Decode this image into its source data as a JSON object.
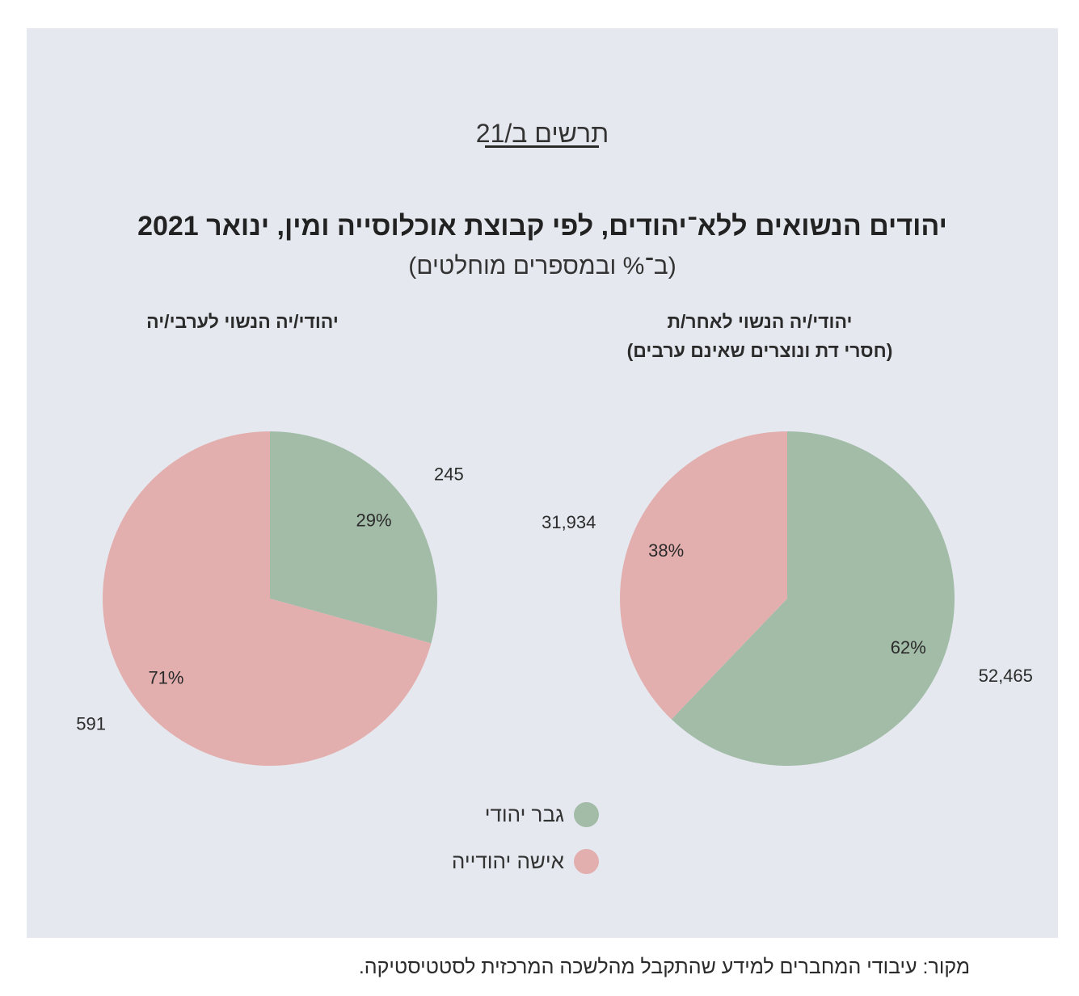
{
  "figure_label": "תרשים ב/21",
  "title": "יהודים הנשואים ללא־יהודים, לפי קבוצת אוכלוסייה ומין, ינואר 2021",
  "subtitle": "(ב־% ובמספרים מוחלטים)",
  "source": "מקור: עיבודי המחברים למידע שהתקבל מהלשכה המרכזית לסטטיסטיקה.",
  "colors": {
    "male": "#a3bca8",
    "female": "#e3afae",
    "panel": "#e5e9ef"
  },
  "legend": [
    {
      "label": "גבר יהודי",
      "color": "#a3bca8"
    },
    {
      "label": "אישה יהודייה",
      "color": "#e3afae"
    }
  ],
  "chart_data": [
    {
      "type": "pie",
      "title_lines": [
        "יהודי/יה הנשוי לערבי/יה"
      ],
      "slices": [
        {
          "name": "גבר יהודי",
          "value": 245,
          "percent": "29%"
        },
        {
          "name": "אישה יהודייה",
          "value": 591,
          "percent": "71%"
        }
      ],
      "value_labels": [
        "245",
        "591"
      ]
    },
    {
      "type": "pie",
      "title_lines": [
        "יהודי/יה הנשוי לאחר/ת",
        "(חסרי דת ונוצרים שאינם ערבים)"
      ],
      "slices": [
        {
          "name": "גבר יהודי",
          "value": 52465,
          "percent": "62%"
        },
        {
          "name": "אישה יהודייה",
          "value": 31934,
          "percent": "38%"
        }
      ],
      "value_labels": [
        "52,465",
        "31,934"
      ]
    }
  ]
}
